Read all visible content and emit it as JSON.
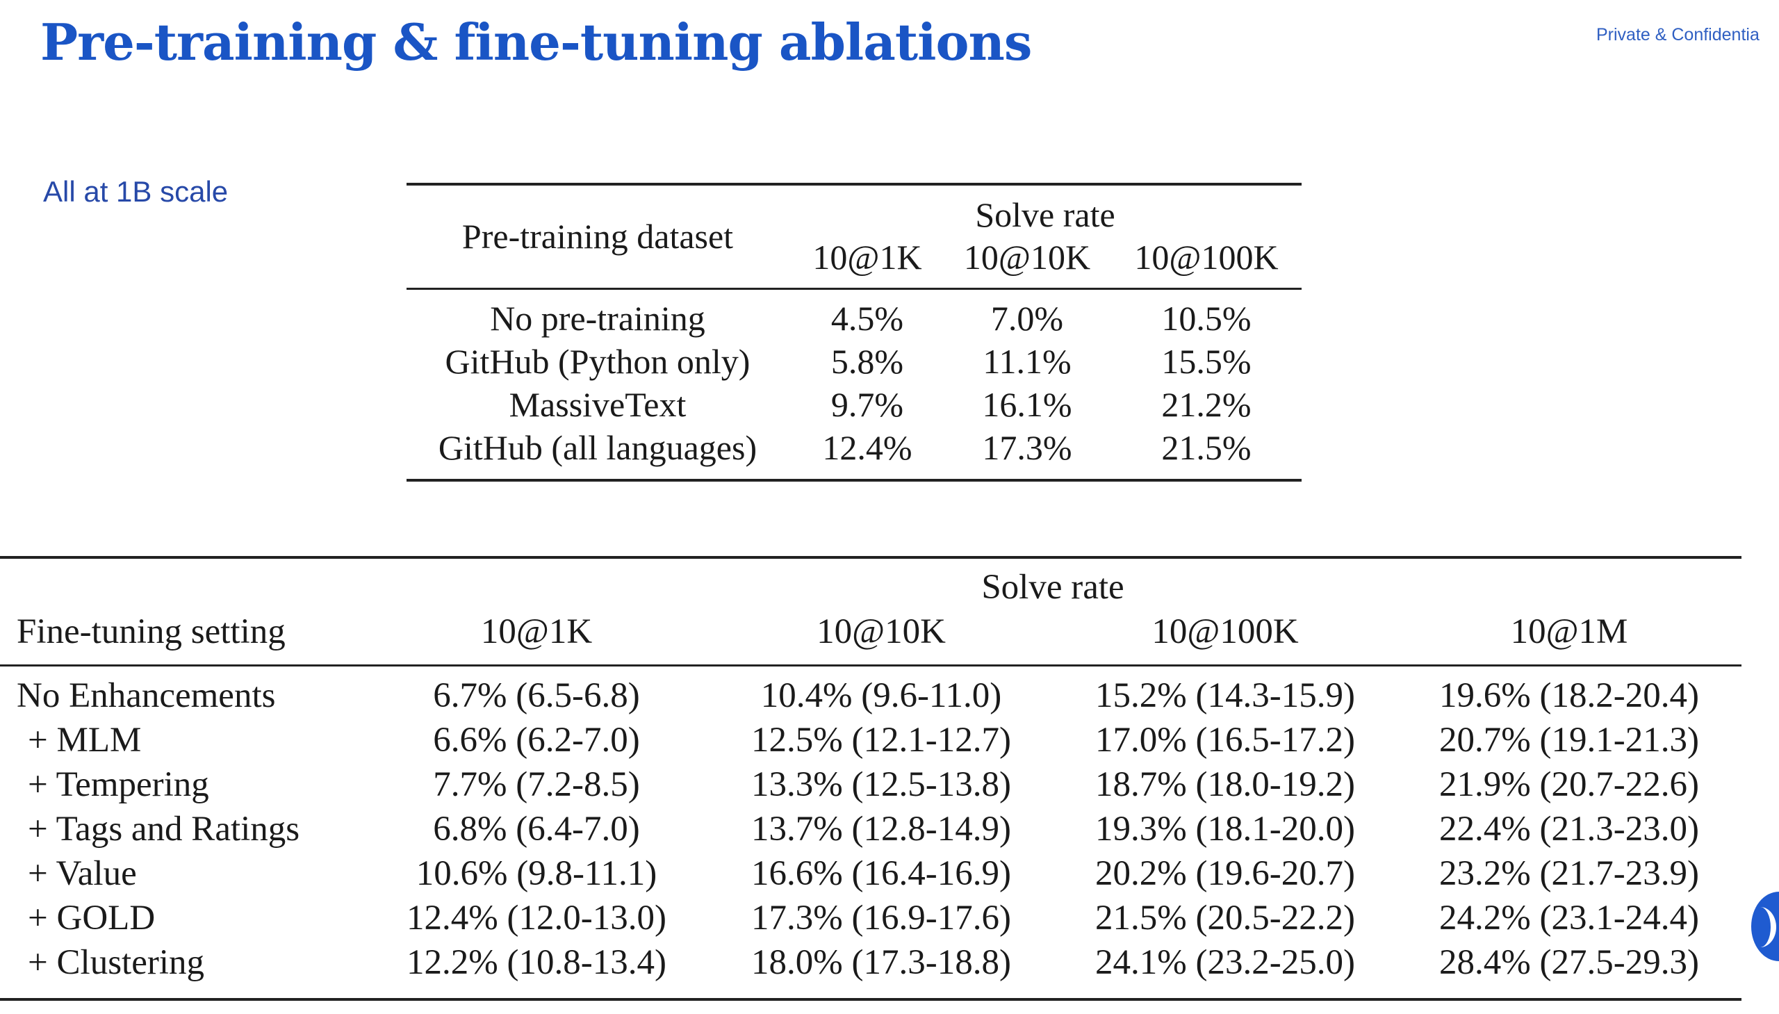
{
  "header": {
    "title": "Pre-training & fine-tuning ablations",
    "confidential": "Private & Confidentia"
  },
  "subtitle": "All at 1B scale",
  "pretraining_table": {
    "row_header": "Pre-training dataset",
    "group_header": "Solve rate",
    "columns": [
      "10@1K",
      "10@10K",
      "10@100K"
    ],
    "rows": [
      {
        "label": "No pre-training",
        "values": [
          "4.5%",
          "7.0%",
          "10.5%"
        ]
      },
      {
        "label": "GitHub (Python only)",
        "values": [
          "5.8%",
          "11.1%",
          "15.5%"
        ]
      },
      {
        "label": "MassiveText",
        "values": [
          "9.7%",
          "16.1%",
          "21.2%"
        ]
      },
      {
        "label": "GitHub (all languages)",
        "values": [
          "12.4%",
          "17.3%",
          "21.5%"
        ]
      }
    ]
  },
  "finetuning_table": {
    "row_header": "Fine-tuning setting",
    "group_header": "Solve rate",
    "columns": [
      "10@1K",
      "10@10K",
      "10@100K",
      "10@1M"
    ],
    "rows": [
      {
        "label": "No Enhancements",
        "values": [
          "6.7% (6.5-6.8)",
          "10.4% (9.6-11.0)",
          "15.2% (14.3-15.9)",
          "19.6% (18.2-20.4)"
        ]
      },
      {
        "label": "+ MLM",
        "values": [
          "6.6% (6.2-7.0)",
          "12.5% (12.1-12.7)",
          "17.0% (16.5-17.2)",
          "20.7% (19.1-21.3)"
        ]
      },
      {
        "label": "+ Tempering",
        "values": [
          "7.7% (7.2-8.5)",
          "13.3% (12.5-13.8)",
          "18.7% (18.0-19.2)",
          "21.9% (20.7-22.6)"
        ]
      },
      {
        "label": "+ Tags and Ratings",
        "values": [
          "6.8% (6.4-7.0)",
          "13.7% (12.8-14.9)",
          "19.3% (18.1-20.0)",
          "22.4% (21.3-23.0)"
        ]
      },
      {
        "label": "+ Value",
        "values": [
          "10.6% (9.8-11.1)",
          "16.6% (16.4-16.9)",
          "20.2% (19.6-20.7)",
          "23.2% (21.7-23.9)"
        ]
      },
      {
        "label": "+ GOLD",
        "values": [
          "12.4% (12.0-13.0)",
          "17.3% (16.9-17.6)",
          "21.5% (20.5-22.2)",
          "24.2% (23.1-24.4)"
        ]
      },
      {
        "label": "+ Clustering",
        "values": [
          "12.2% (10.8-13.4)",
          "18.0% (17.3-18.8)",
          "24.1% (23.2-25.0)",
          "28.4% (27.5-29.3)"
        ]
      }
    ]
  },
  "colors": {
    "title": "#1a55c5",
    "subtitle": "#2749a8",
    "text": "#1a1a1a",
    "accent": "#1f5bd0"
  }
}
